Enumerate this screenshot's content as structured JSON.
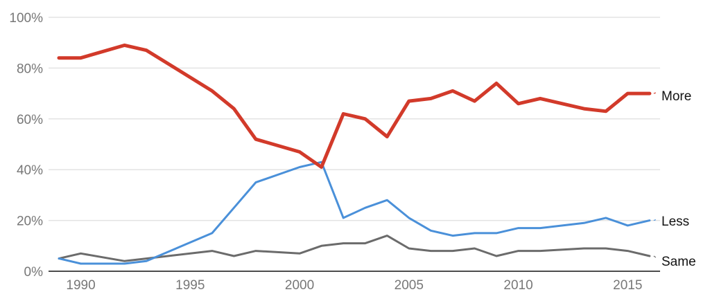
{
  "chart_data": {
    "type": "line",
    "title": "",
    "xlabel": "",
    "ylabel": "",
    "ylim": [
      0,
      100
    ],
    "xlim": [
      1989,
      2016
    ],
    "y_ticks": [
      "0%",
      "20%",
      "40%",
      "60%",
      "80%",
      "100%"
    ],
    "x_ticks": [
      "1990",
      "1995",
      "2000",
      "2005",
      "2010",
      "2015"
    ],
    "grid": true,
    "legend_position": "inline-right",
    "x": [
      1989,
      1990,
      1992,
      1993,
      1996,
      1997,
      1998,
      2000,
      2001,
      2002,
      2003,
      2004,
      2005,
      2006,
      2007,
      2008,
      2009,
      2010,
      2011,
      2013,
      2014,
      2015,
      2016
    ],
    "series": [
      {
        "name": "More",
        "color": "#d23a2a",
        "values": [
          84,
          84,
          89,
          87,
          71,
          64,
          52,
          47,
          41,
          62,
          60,
          53,
          67,
          68,
          71,
          67,
          74,
          66,
          68,
          64,
          63,
          70,
          70
        ]
      },
      {
        "name": "Less",
        "color": "#4a90d9",
        "values": [
          5,
          3,
          3,
          4,
          15,
          25,
          35,
          41,
          43,
          21,
          25,
          28,
          21,
          16,
          14,
          15,
          15,
          17,
          17,
          19,
          21,
          18,
          20
        ]
      },
      {
        "name": "Same",
        "color": "#6b6b6b",
        "values": [
          5,
          7,
          4,
          5,
          8,
          6,
          8,
          7,
          10,
          11,
          11,
          14,
          9,
          8,
          8,
          9,
          6,
          8,
          8,
          9,
          9,
          8,
          6
        ]
      }
    ]
  },
  "axes": {
    "y_labels": [
      "100%",
      "80%",
      "60%",
      "40%",
      "20%",
      "0%"
    ],
    "x_labels": [
      "1990",
      "1995",
      "2000",
      "2005",
      "2010",
      "2015"
    ]
  },
  "labels": {
    "more": "More",
    "less": "Less",
    "same": "Same"
  }
}
